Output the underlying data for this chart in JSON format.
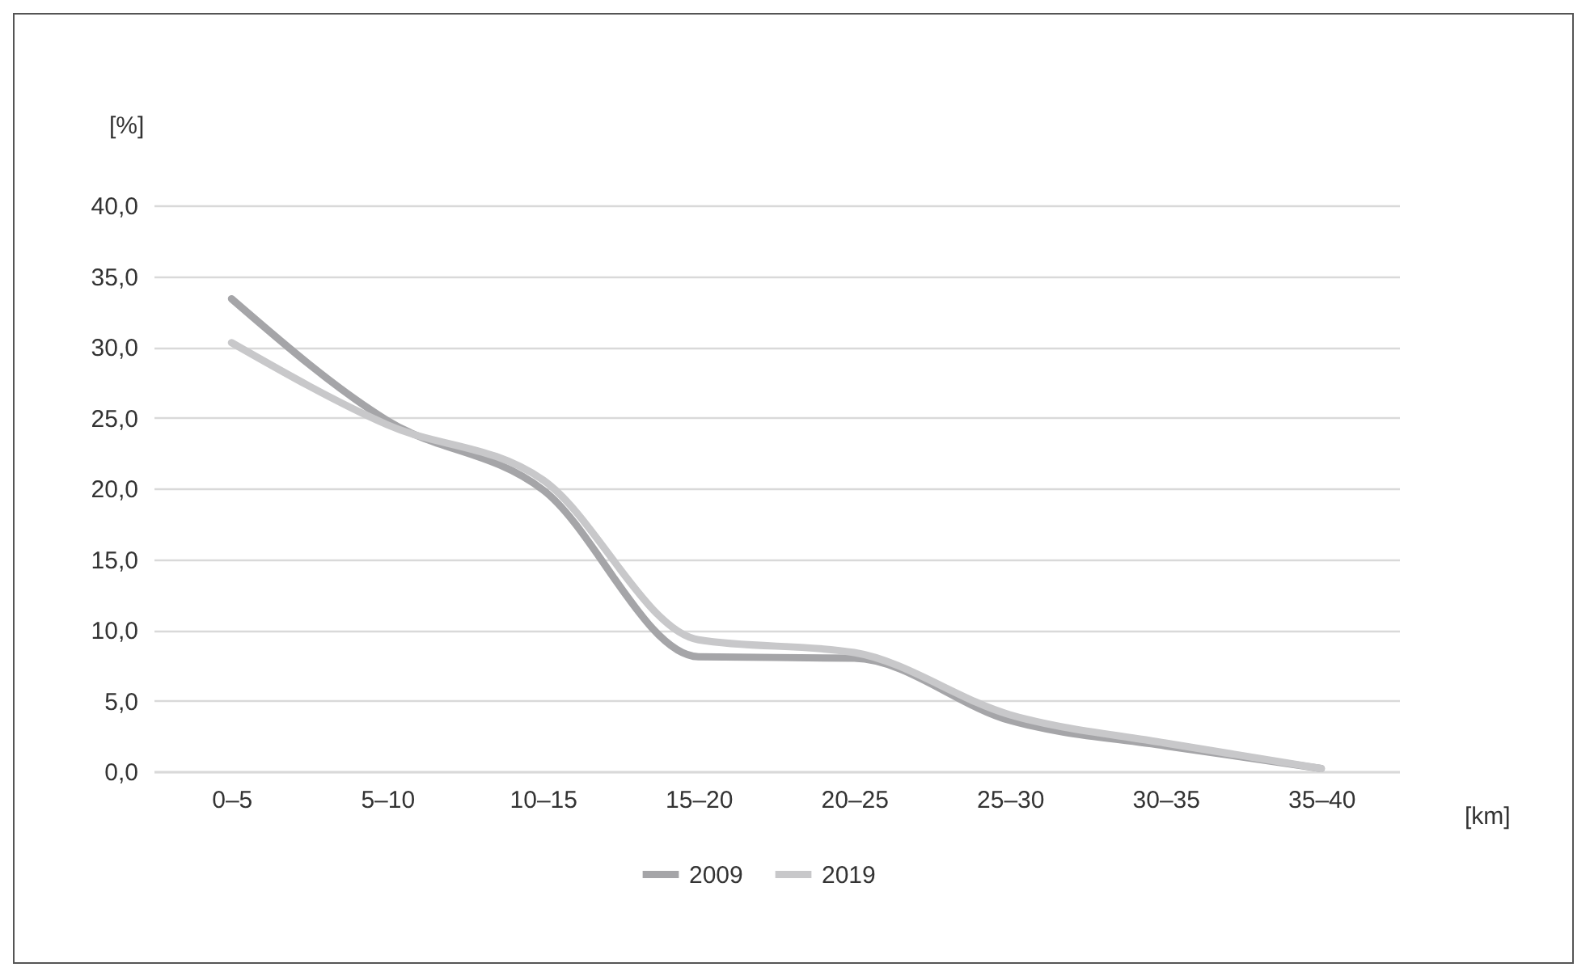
{
  "chart_data": {
    "type": "line",
    "ylabel": "[%]",
    "xlabel": "[km]",
    "categories": [
      "0–5",
      "5–10",
      "10–15",
      "15–20",
      "20–25",
      "25–30",
      "30–35",
      "35–40"
    ],
    "series": [
      {
        "name": "2009",
        "color": "#a5a5a8",
        "values": [
          33.4,
          24.8,
          19.9,
          8.1,
          8.0,
          3.6,
          1.8,
          0.2
        ]
      },
      {
        "name": "2019",
        "color": "#c8c8ca",
        "values": [
          30.3,
          24.5,
          20.6,
          9.3,
          8.4,
          4.0,
          2.0,
          0.2
        ]
      }
    ],
    "ylim": [
      0,
      40
    ],
    "yticks": [
      {
        "value": 0,
        "label": "0,0"
      },
      {
        "value": 5,
        "label": "5,0"
      },
      {
        "value": 10,
        "label": "10,0"
      },
      {
        "value": 15,
        "label": "15,0"
      },
      {
        "value": 20,
        "label": "20,0"
      },
      {
        "value": 25,
        "label": "25,0"
      },
      {
        "value": 30,
        "label": "30,0"
      },
      {
        "value": 35,
        "label": "35,0"
      },
      {
        "value": 40,
        "label": "40,0"
      }
    ],
    "grid": "y",
    "legend": "bottom",
    "marker": "none",
    "line_style": "solid"
  }
}
